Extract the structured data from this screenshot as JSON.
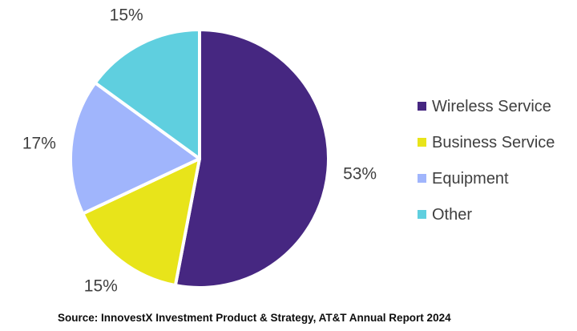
{
  "chart_data": {
    "type": "pie",
    "title": "",
    "categories": [
      "Wireless Service",
      "Business Service",
      "Equipment",
      "Other"
    ],
    "values": [
      53,
      15,
      17,
      15
    ],
    "slice_labels": [
      "53%",
      "15%",
      "17%",
      "15%"
    ],
    "colors": [
      "#462781",
      "#e8e41a",
      "#a0b5fc",
      "#5fcfdf"
    ],
    "start_angle_deg": 0,
    "direction": "clockwise",
    "legend_position": "right",
    "label_color": "#404040",
    "separator_color": "#ffffff",
    "source": "Source: InnovestX Investment Product & Strategy, AT&T Annual Report 2024"
  }
}
